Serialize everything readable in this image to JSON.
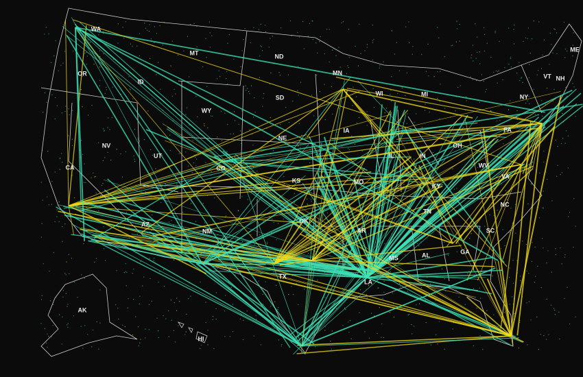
{
  "states": [
    {
      "label": "WA"
    },
    {
      "label": "OR"
    },
    {
      "label": "ID"
    },
    {
      "label": "MT"
    },
    {
      "label": "WY"
    },
    {
      "label": "ND"
    },
    {
      "label": "SD"
    },
    {
      "label": "MN"
    },
    {
      "label": "WI"
    },
    {
      "label": "MI"
    },
    {
      "label": "NE"
    },
    {
      "label": "IA"
    },
    {
      "label": "IL"
    },
    {
      "label": "IN"
    },
    {
      "label": "OH"
    },
    {
      "label": "PA"
    },
    {
      "label": "NY"
    },
    {
      "label": "VT"
    },
    {
      "label": "NH"
    },
    {
      "label": "ME"
    },
    {
      "label": "CA"
    },
    {
      "label": "NV"
    },
    {
      "label": "UT"
    },
    {
      "label": "CO"
    },
    {
      "label": "KS"
    },
    {
      "label": "MO"
    },
    {
      "label": "KY"
    },
    {
      "label": "WV"
    },
    {
      "label": "VA"
    },
    {
      "label": "NC"
    },
    {
      "label": "TN"
    },
    {
      "label": "SC"
    },
    {
      "label": "GA"
    },
    {
      "label": "AL"
    },
    {
      "label": "MS"
    },
    {
      "label": "LA"
    },
    {
      "label": "AR"
    },
    {
      "label": "OK"
    },
    {
      "label": "TX"
    },
    {
      "label": "NM"
    },
    {
      "label": "AZ"
    },
    {
      "label": "AK"
    },
    {
      "label": "HI"
    }
  ]
}
